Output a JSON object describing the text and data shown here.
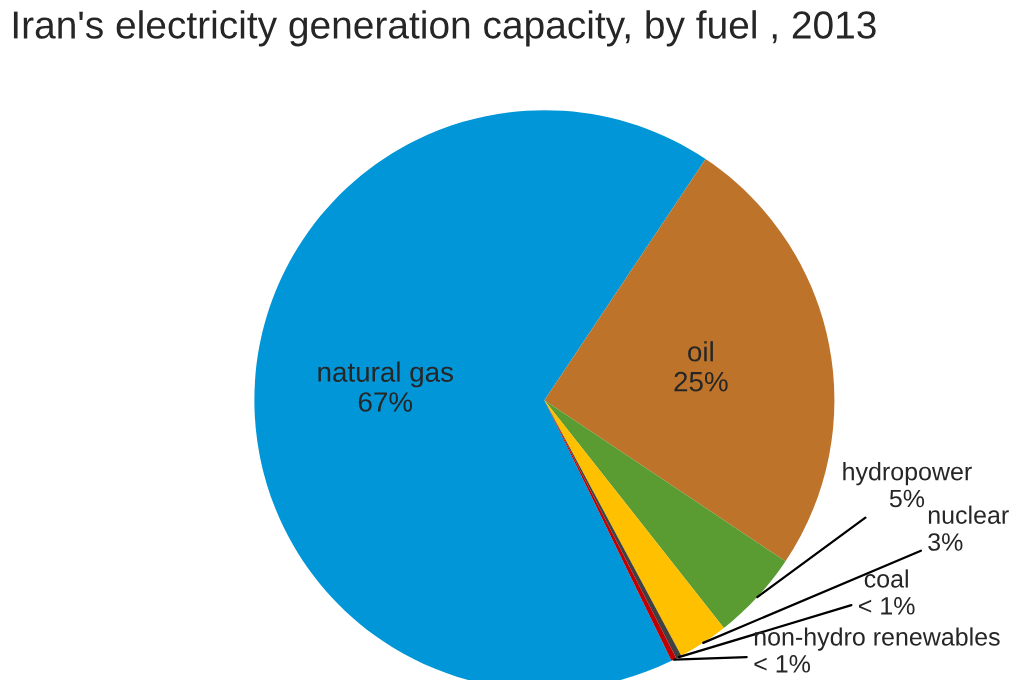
{
  "chart_data": {
    "type": "pie",
    "title": "Iran's electricity generation capacity, by fuel , 2013",
    "categories": [
      "natural gas",
      "oil",
      "hydropower",
      "nuclear",
      "coal",
      "non-hydro renewables"
    ],
    "values": [
      66.6,
      25,
      5,
      2.8,
      0.3,
      0.3
    ],
    "colors": [
      "#0096d7",
      "#bd732a",
      "#5a9b32",
      "#ffc000",
      "#404040",
      "#c00000"
    ],
    "value_labels": [
      "67%",
      "25%",
      "5%",
      "3%",
      "< 1%",
      "< 1%"
    ]
  }
}
